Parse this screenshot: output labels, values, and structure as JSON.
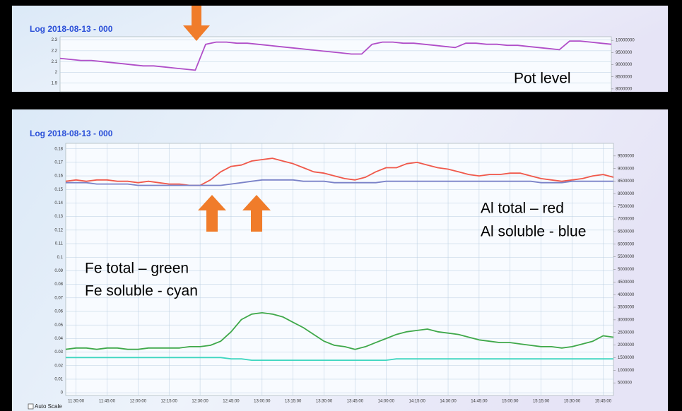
{
  "chart_data": [
    {
      "type": "line",
      "title": "Log 2018-08-13 - 000",
      "annotations": [
        "Pot level"
      ],
      "ylim": [
        1.82,
        2.33
      ],
      "yticks": [
        2.3,
        2.2,
        2.1,
        2,
        1.9
      ],
      "y2lim": [
        7880000,
        10150000
      ],
      "y2ticks": [
        10000000,
        9500000,
        9000000,
        8500000,
        8000000
      ],
      "grid": true,
      "series": [
        {
          "color": "#b04ec8",
          "values": [
            2.13,
            2.12,
            2.11,
            2.11,
            2.1,
            2.09,
            2.08,
            2.07,
            2.06,
            2.06,
            2.05,
            2.04,
            2.03,
            2.02,
            2.26,
            2.28,
            2.28,
            2.27,
            2.27,
            2.26,
            2.25,
            2.24,
            2.23,
            2.22,
            2.21,
            2.2,
            2.19,
            2.18,
            2.17,
            2.17,
            2.26,
            2.28,
            2.28,
            2.27,
            2.27,
            2.26,
            2.25,
            2.24,
            2.23,
            2.27,
            2.27,
            2.26,
            2.26,
            2.25,
            2.25,
            2.24,
            2.23,
            2.22,
            2.21,
            2.29,
            2.29,
            2.28,
            2.27,
            2.26
          ]
        }
      ]
    },
    {
      "type": "line",
      "title": "Log 2018-08-13 - 000",
      "annotations": [
        "Al total – red",
        "Al soluble - blue",
        "Fe total – green",
        "Fe soluble - cyan"
      ],
      "categories": [
        null,
        "11:30:00",
        null,
        null,
        "11:45:00",
        null,
        null,
        "12:00:00",
        null,
        null,
        "12:15:00",
        null,
        null,
        "12:30:00",
        null,
        null,
        "12:45:00",
        null,
        null,
        "13:00:00",
        null,
        null,
        "13:15:00",
        null,
        null,
        "13:30:00",
        null,
        null,
        "13:45:00",
        null,
        null,
        "14:00:00",
        null,
        null,
        "14:15:00",
        null,
        null,
        "14:30:00",
        null,
        null,
        "14:45:00",
        null,
        null,
        "15:00:00",
        null,
        null,
        "15:15:00",
        null,
        null,
        "15:30:00",
        null,
        null,
        "15:45:00",
        null
      ],
      "ylim": [
        -0.002,
        0.184
      ],
      "yticks": [
        0.18,
        0.17,
        0.16,
        0.15,
        0.14,
        0.13,
        0.12,
        0.11,
        0.1,
        0.09,
        0.08,
        0.07,
        0.06,
        0.05,
        0.04,
        0.03,
        0.02,
        0.01,
        0
      ],
      "y2lim": [
        0,
        10000000
      ],
      "y2ticks": [
        9500000,
        9000000,
        8500000,
        8000000,
        7500000,
        7000000,
        6500000,
        6000000,
        5500000,
        5000000,
        4500000,
        4000000,
        3500000,
        3000000,
        2500000,
        2000000,
        1500000,
        1000000,
        500000
      ],
      "grid": true,
      "series": [
        {
          "color": "#f0584a",
          "values": [
            0.156,
            0.157,
            0.156,
            0.157,
            0.157,
            0.156,
            0.156,
            0.155,
            0.156,
            0.155,
            0.154,
            0.154,
            0.153,
            0.153,
            0.157,
            0.163,
            0.167,
            0.168,
            0.171,
            0.172,
            0.173,
            0.171,
            0.169,
            0.166,
            0.163,
            0.162,
            0.16,
            0.158,
            0.157,
            0.159,
            0.163,
            0.166,
            0.166,
            0.169,
            0.17,
            0.168,
            0.166,
            0.165,
            0.163,
            0.161,
            0.16,
            0.161,
            0.161,
            0.162,
            0.162,
            0.16,
            0.158,
            0.157,
            0.156,
            0.157,
            0.158,
            0.16,
            0.161,
            0.159
          ]
        },
        {
          "color": "#7a82c8",
          "values": [
            0.155,
            0.155,
            0.155,
            0.154,
            0.154,
            0.154,
            0.154,
            0.153,
            0.153,
            0.153,
            0.153,
            0.153,
            0.153,
            0.153,
            0.153,
            0.153,
            0.154,
            0.155,
            0.156,
            0.157,
            0.157,
            0.157,
            0.157,
            0.156,
            0.156,
            0.156,
            0.155,
            0.155,
            0.155,
            0.155,
            0.155,
            0.156,
            0.156,
            0.156,
            0.156,
            0.156,
            0.156,
            0.156,
            0.156,
            0.156,
            0.156,
            0.156,
            0.156,
            0.156,
            0.156,
            0.156,
            0.155,
            0.155,
            0.155,
            0.156,
            0.156,
            0.156,
            0.156,
            0.156
          ]
        },
        {
          "color": "#3fa84a",
          "values": [
            0.032,
            0.033,
            0.033,
            0.032,
            0.033,
            0.033,
            0.032,
            0.032,
            0.033,
            0.033,
            0.033,
            0.033,
            0.034,
            0.034,
            0.035,
            0.038,
            0.045,
            0.054,
            0.058,
            0.059,
            0.058,
            0.056,
            0.052,
            0.048,
            0.043,
            0.038,
            0.035,
            0.034,
            0.032,
            0.034,
            0.037,
            0.04,
            0.043,
            0.045,
            0.046,
            0.047,
            0.045,
            0.044,
            0.043,
            0.041,
            0.039,
            0.038,
            0.037,
            0.037,
            0.036,
            0.035,
            0.034,
            0.034,
            0.033,
            0.034,
            0.036,
            0.038,
            0.042,
            0.041
          ]
        },
        {
          "color": "#3fd6c0",
          "values": [
            0.026,
            0.026,
            0.026,
            0.026,
            0.026,
            0.026,
            0.026,
            0.026,
            0.026,
            0.026,
            0.026,
            0.026,
            0.026,
            0.026,
            0.026,
            0.026,
            0.025,
            0.025,
            0.024,
            0.024,
            0.024,
            0.024,
            0.024,
            0.024,
            0.024,
            0.024,
            0.024,
            0.024,
            0.024,
            0.024,
            0.024,
            0.024,
            0.025,
            0.025,
            0.025,
            0.025,
            0.025,
            0.025,
            0.025,
            0.025,
            0.025,
            0.025,
            0.025,
            0.025,
            0.025,
            0.025,
            0.025,
            0.025,
            0.025,
            0.025,
            0.025,
            0.025,
            0.025,
            0.025
          ]
        }
      ]
    }
  ],
  "controls": {
    "auto_scale": "Auto Scale"
  }
}
